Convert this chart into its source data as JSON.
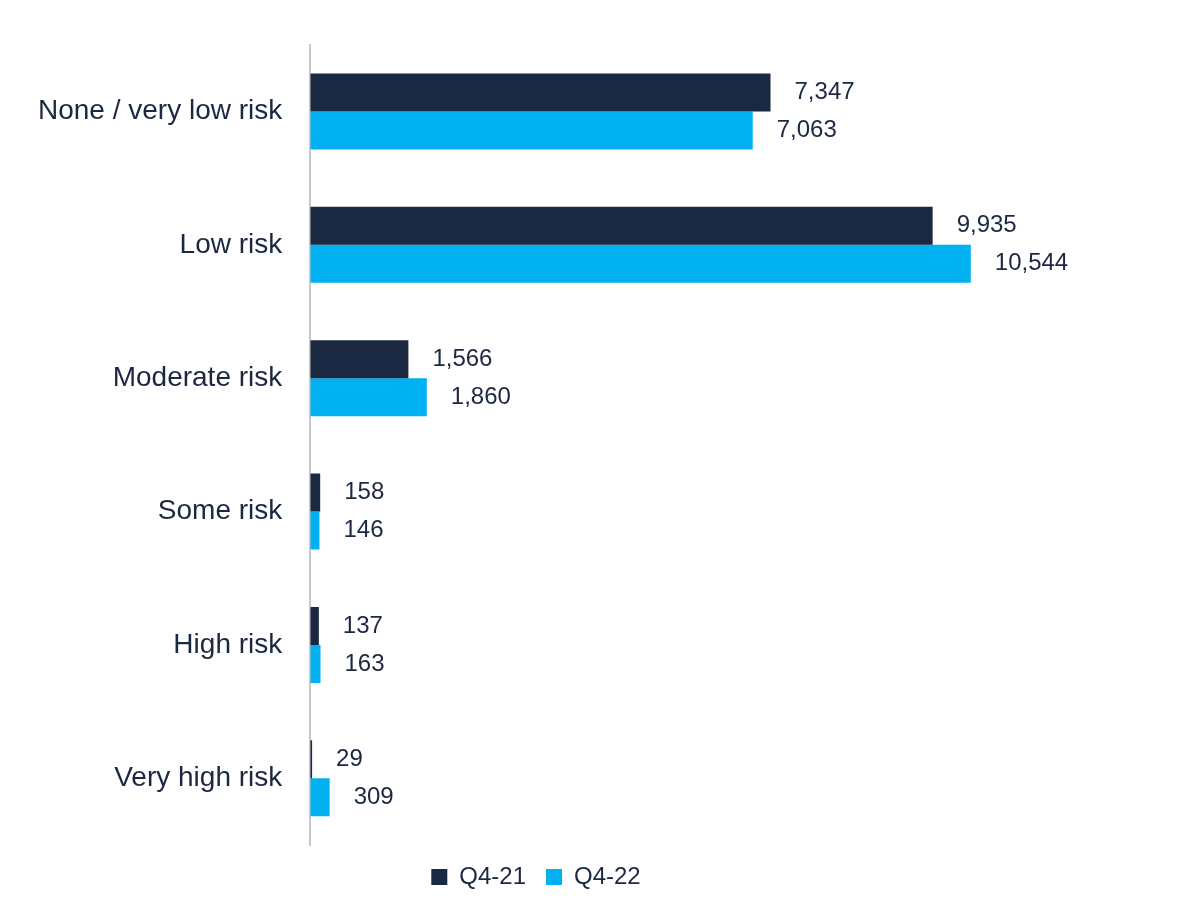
{
  "chart_data": {
    "type": "bar",
    "orientation": "horizontal",
    "categories": [
      "None / very low risk",
      "Low risk",
      "Moderate risk",
      "Some risk",
      "High risk",
      "Very high risk"
    ],
    "series": [
      {
        "name": "Q4-21",
        "color": "#1b2841",
        "values": [
          7347,
          9935,
          1566,
          158,
          137,
          29
        ],
        "value_labels": [
          "7,347",
          "9,935",
          "1,566",
          "158",
          "137",
          "29"
        ]
      },
      {
        "name": "Q4-22",
        "color": "#00b0f0",
        "values": [
          7063,
          10544,
          1860,
          146,
          163,
          309
        ],
        "value_labels": [
          "7,063",
          "10,544",
          "1,860",
          "146",
          "163",
          "309"
        ]
      }
    ],
    "legend": "bottom"
  }
}
